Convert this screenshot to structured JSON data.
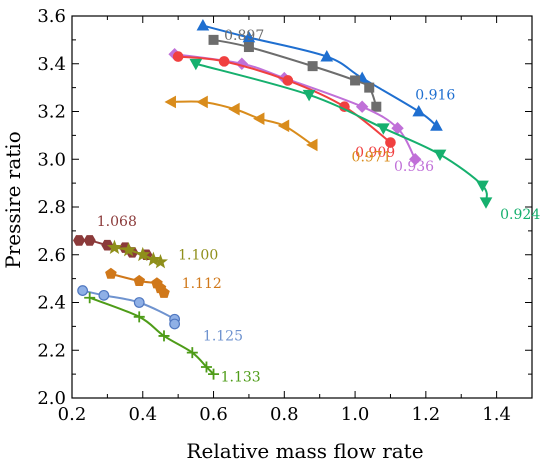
{
  "chart_data": {
    "type": "line",
    "xlabel": "Relative mass flow rate",
    "ylabel": "Pressire ratio",
    "xlim": [
      0.2,
      1.5
    ],
    "ylim": [
      2.0,
      3.6
    ],
    "xticks": [
      "0.2",
      "0.4",
      "0.6",
      "0.8",
      "1.0",
      "1.2",
      "1.4"
    ],
    "yticks": [
      "2.0",
      "2.2",
      "2.4",
      "2.6",
      "2.8",
      "3.0",
      "3.2",
      "3.4",
      "3.6"
    ],
    "grid": false,
    "series": [
      {
        "name": "0.916",
        "color": "#1f6fd0",
        "marker": "triangle-up",
        "label_at": [
          1.17,
          3.25
        ],
        "points": [
          [
            0.57,
            3.56
          ],
          [
            0.7,
            3.51
          ],
          [
            0.92,
            3.43
          ],
          [
            1.02,
            3.34
          ],
          [
            1.18,
            3.2
          ],
          [
            1.23,
            3.14
          ]
        ]
      },
      {
        "name": "0.897",
        "color": "#6d6d6d",
        "marker": "square",
        "label_at": [
          0.63,
          3.5
        ],
        "points": [
          [
            0.6,
            3.5
          ],
          [
            0.7,
            3.47
          ],
          [
            0.88,
            3.39
          ],
          [
            1.0,
            3.33
          ],
          [
            1.04,
            3.3
          ],
          [
            1.06,
            3.22
          ]
        ]
      },
      {
        "name": "0.936",
        "color": "#c070d8",
        "marker": "diamond",
        "label_at": [
          1.11,
          2.95
        ],
        "points": [
          [
            0.49,
            3.44
          ],
          [
            0.68,
            3.4
          ],
          [
            0.8,
            3.34
          ],
          [
            1.02,
            3.22
          ],
          [
            1.12,
            3.13
          ],
          [
            1.17,
            3.0
          ]
        ]
      },
      {
        "name": "0.909",
        "color": "#f04040",
        "marker": "circle",
        "label_at": [
          1.0,
          3.01
        ],
        "points": [
          [
            0.5,
            3.43
          ],
          [
            0.63,
            3.41
          ],
          [
            0.81,
            3.33
          ],
          [
            0.97,
            3.22
          ],
          [
            1.1,
            3.07
          ]
        ]
      },
      {
        "name": "0.924",
        "color": "#16b06e",
        "marker": "triangle-down",
        "label_at": [
          1.41,
          2.75
        ],
        "points": [
          [
            0.55,
            3.4
          ],
          [
            0.87,
            3.27
          ],
          [
            1.08,
            3.13
          ],
          [
            1.24,
            3.02
          ],
          [
            1.36,
            2.89
          ],
          [
            1.37,
            2.82
          ]
        ]
      },
      {
        "name": "0.971",
        "color": "#d98c1c",
        "marker": "triangle-left",
        "label_at": [
          0.99,
          2.99
        ],
        "points": [
          [
            0.48,
            3.24
          ],
          [
            0.57,
            3.24
          ],
          [
            0.66,
            3.21
          ],
          [
            0.73,
            3.17
          ],
          [
            0.8,
            3.14
          ],
          [
            0.88,
            3.06
          ]
        ]
      },
      {
        "name": "1.068",
        "color": "#8b3a3a",
        "marker": "hexagon",
        "label_at": [
          0.27,
          2.72
        ],
        "points": [
          [
            0.22,
            2.66
          ],
          [
            0.25,
            2.66
          ],
          [
            0.3,
            2.64
          ],
          [
            0.35,
            2.63
          ],
          [
            0.37,
            2.61
          ],
          [
            0.41,
            2.6
          ]
        ]
      },
      {
        "name": "1.100",
        "color": "#8f8f1a",
        "marker": "star",
        "label_at": [
          0.5,
          2.58
        ],
        "points": [
          [
            0.32,
            2.63
          ],
          [
            0.36,
            2.62
          ],
          [
            0.4,
            2.6
          ],
          [
            0.43,
            2.58
          ],
          [
            0.45,
            2.57
          ]
        ]
      },
      {
        "name": "1.112",
        "color": "#d0781a",
        "marker": "pentagon",
        "label_at": [
          0.51,
          2.46
        ],
        "points": [
          [
            0.31,
            2.52
          ],
          [
            0.39,
            2.49
          ],
          [
            0.44,
            2.48
          ],
          [
            0.45,
            2.46
          ],
          [
            0.46,
            2.44
          ]
        ]
      },
      {
        "name": "1.125",
        "color": "#6f93cf",
        "marker": "sphere",
        "label_at": [
          0.57,
          2.24
        ],
        "points": [
          [
            0.23,
            2.45
          ],
          [
            0.29,
            2.43
          ],
          [
            0.39,
            2.4
          ],
          [
            0.49,
            2.33
          ],
          [
            0.49,
            2.31
          ]
        ]
      },
      {
        "name": "1.133",
        "color": "#4e9c18",
        "marker": "plus",
        "label_at": [
          0.62,
          2.07
        ],
        "points": [
          [
            0.25,
            2.42
          ],
          [
            0.39,
            2.34
          ],
          [
            0.46,
            2.26
          ],
          [
            0.54,
            2.19
          ],
          [
            0.58,
            2.13
          ],
          [
            0.6,
            2.1
          ]
        ]
      }
    ]
  }
}
